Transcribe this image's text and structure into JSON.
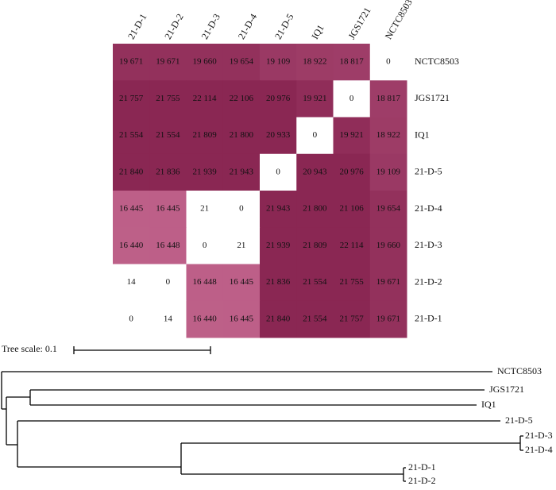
{
  "chart_data": {
    "type": "heatmap",
    "x_categories": [
      "21-D-1",
      "21-D-2",
      "21-D-3",
      "21-D-4",
      "21-D-5",
      "IQ1",
      "JGS1721",
      "NCTC8503"
    ],
    "y_categories": [
      "NCTC8503",
      "JGS1721",
      "IQ1",
      "21-D-5",
      "21-D-4",
      "21-D-3",
      "21-D-2",
      "21-D-1"
    ],
    "values": [
      [
        19671,
        19671,
        19660,
        19654,
        19109,
        18922,
        18817,
        0
      ],
      [
        21757,
        21755,
        22114,
        22106,
        20976,
        19921,
        0,
        18817
      ],
      [
        21554,
        21554,
        21809,
        21800,
        20933,
        0,
        19921,
        18922
      ],
      [
        21840,
        21836,
        21939,
        21943,
        0,
        20943,
        20976,
        19109
      ],
      [
        16445,
        16445,
        21,
        0,
        21943,
        21800,
        21106,
        19654
      ],
      [
        16440,
        16448,
        0,
        21,
        21939,
        21809,
        22114,
        19660
      ],
      [
        14,
        0,
        16448,
        16445,
        21836,
        21554,
        21755,
        19671
      ],
      [
        0,
        14,
        16440,
        16445,
        21840,
        21554,
        21757,
        19671
      ]
    ],
    "value_labels": [
      [
        "19 671",
        "19 671",
        "19 660",
        "19 654",
        "19 109",
        "18 922",
        "18 817",
        "0"
      ],
      [
        "21 757",
        "21 755",
        "22 114",
        "22 106",
        "20 976",
        "19 921",
        "0",
        "18 817"
      ],
      [
        "21 554",
        "21 554",
        "21 809",
        "21 800",
        "20 933",
        "0",
        "19 921",
        "18 922"
      ],
      [
        "21 840",
        "21 836",
        "21 939",
        "21 943",
        "0",
        "20 943",
        "20 976",
        "19 109"
      ],
      [
        "16 445",
        "16 445",
        "21",
        "0",
        "21 943",
        "21 800",
        "21 106",
        "19 654"
      ],
      [
        "16 440",
        "16 448",
        "0",
        "21",
        "21 939",
        "21 809",
        "22 114",
        "19 660"
      ],
      [
        "14",
        "0",
        "16 448",
        "16 445",
        "21 836",
        "21 554",
        "21 755",
        "19 671"
      ],
      [
        "0",
        "14",
        "16 440",
        "16 445",
        "21 840",
        "21 554",
        "21 757",
        "19 671"
      ]
    ],
    "colors": [
      "#ffffff",
      "#c4678f",
      "#8a2753"
    ],
    "tree_scale_label": "Tree scale: 0.1",
    "tree_leaves": [
      "NCTC8503",
      "JGS1721",
      "IQ1",
      "21-D-5",
      "21-D-3",
      "21-D-4",
      "21-D-1",
      "21-D-2"
    ]
  }
}
